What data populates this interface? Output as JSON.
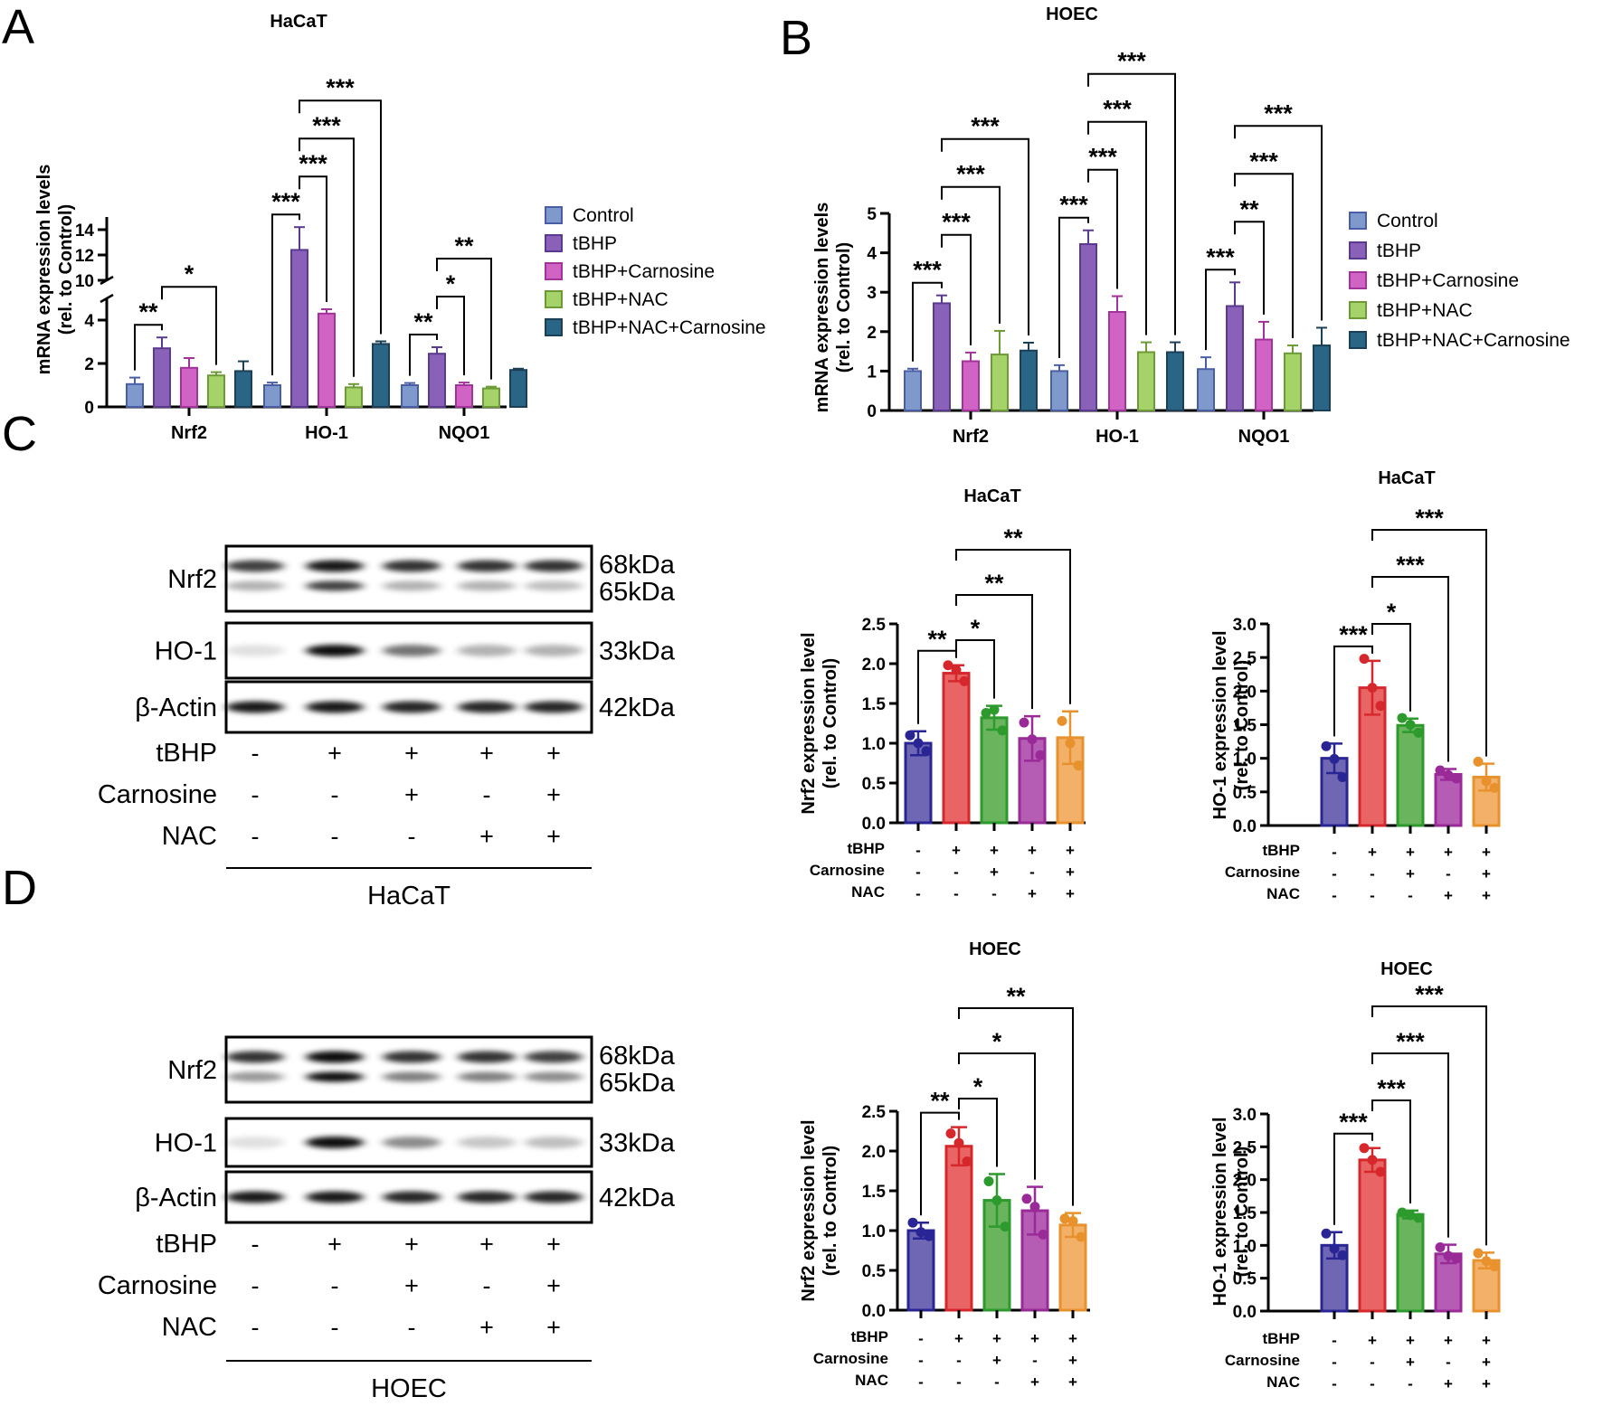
{
  "panels": {
    "A": "A",
    "B": "B",
    "C": "C",
    "D": "D"
  },
  "colors": {
    "qpcr": [
      "#7f99cc",
      "#8a61b8",
      "#d063c4",
      "#a6d26a",
      "#2a6586"
    ],
    "qpcr_stroke": [
      "#4a5ea5",
      "#5a3a8f",
      "#a2339a",
      "#6c9a35",
      "#1b3f57"
    ],
    "wb_fill": [
      "#6f66b4",
      "#e96464",
      "#69b45c",
      "#b55db4",
      "#f2b068"
    ],
    "wb_stroke": [
      "#2a2594",
      "#d6282c",
      "#2d9a2d",
      "#9b2a99",
      "#e8922d"
    ]
  },
  "legend": [
    "Control",
    "tBHP",
    "tBHP+Carnosine",
    "tBHP+NAC",
    "tBHP+NAC+Carnosine"
  ],
  "conditions": {
    "rows": [
      "tBHP",
      "Carnosine",
      "NAC"
    ],
    "signs": [
      [
        "-",
        "+",
        "+",
        "+",
        "+"
      ],
      [
        "-",
        "-",
        "+",
        "-",
        "+"
      ],
      [
        "-",
        "-",
        "-",
        "+",
        "+"
      ]
    ]
  },
  "chart_data": [
    {
      "id": "A",
      "type": "bar",
      "title": "HaCaT",
      "ylabel": "mRNA expression levels",
      "ylabel2": "(rel. to Control)",
      "categories": [
        "Nrf2",
        "HO-1",
        "NQO1"
      ],
      "y_broken": true,
      "ylim_lower": [
        0,
        5
      ],
      "ylim_upper": [
        10,
        15
      ],
      "yticks_lower": [
        "0",
        "2",
        "4"
      ],
      "yticks_upper": [
        "10",
        "12",
        "14"
      ],
      "series": [
        {
          "name": "Control",
          "values": [
            1.05,
            1.0,
            1.0
          ],
          "errors": [
            0.3,
            0.12,
            0.1
          ]
        },
        {
          "name": "tBHP",
          "values": [
            2.7,
            12.4,
            2.45
          ],
          "errors": [
            0.5,
            1.8,
            0.3
          ]
        },
        {
          "name": "tBHP+Carnosine",
          "values": [
            1.8,
            4.3,
            1.0
          ],
          "errors": [
            0.45,
            0.2,
            0.12
          ]
        },
        {
          "name": "tBHP+NAC",
          "values": [
            1.45,
            0.9,
            0.85
          ],
          "errors": [
            0.15,
            0.15,
            0.08
          ]
        },
        {
          "name": "tBHP+NAC+Carnosine",
          "values": [
            1.65,
            2.9,
            1.7
          ],
          "errors": [
            0.45,
            0.12,
            0.06
          ]
        }
      ],
      "annotations": [
        {
          "cat": 0,
          "from": 0,
          "to": 1,
          "label": "**"
        },
        {
          "cat": 0,
          "from": 1,
          "to": 3,
          "label": "*"
        },
        {
          "cat": 1,
          "from": 0,
          "to": 1,
          "label": "***"
        },
        {
          "cat": 1,
          "from": 1,
          "to": 2,
          "label": "***"
        },
        {
          "cat": 1,
          "from": 1,
          "to": 3,
          "label": "***"
        },
        {
          "cat": 1,
          "from": 1,
          "to": 4,
          "label": "***"
        },
        {
          "cat": 2,
          "from": 0,
          "to": 1,
          "label": "**"
        },
        {
          "cat": 2,
          "from": 1,
          "to": 2,
          "label": "*"
        },
        {
          "cat": 2,
          "from": 1,
          "to": 3,
          "label": "**"
        }
      ]
    },
    {
      "id": "B",
      "type": "bar",
      "title": "HOEC",
      "ylabel": "mRNA expression levels",
      "ylabel2": "(rel. to Control)",
      "categories": [
        "Nrf2",
        "HO-1",
        "NQO1"
      ],
      "ylim": [
        0,
        5
      ],
      "yticks": [
        "0",
        "1",
        "2",
        "3",
        "4",
        "5"
      ],
      "series": [
        {
          "name": "Control",
          "values": [
            1.0,
            1.0,
            1.05
          ],
          "errors": [
            0.06,
            0.15,
            0.3
          ]
        },
        {
          "name": "tBHP",
          "values": [
            2.72,
            4.22,
            2.65
          ],
          "errors": [
            0.2,
            0.35,
            0.6
          ]
        },
        {
          "name": "tBHP+Carnosine",
          "values": [
            1.25,
            2.5,
            1.8
          ],
          "errors": [
            0.22,
            0.4,
            0.45
          ]
        },
        {
          "name": "tBHP+NAC",
          "values": [
            1.42,
            1.48,
            1.45
          ],
          "errors": [
            0.6,
            0.25,
            0.2
          ]
        },
        {
          "name": "tBHP+NAC+Carnosine",
          "values": [
            1.52,
            1.48,
            1.65
          ],
          "errors": [
            0.2,
            0.25,
            0.45
          ]
        }
      ],
      "annotations": [
        {
          "cat": 0,
          "from": 0,
          "to": 1,
          "label": "***"
        },
        {
          "cat": 0,
          "from": 1,
          "to": 2,
          "label": "***"
        },
        {
          "cat": 0,
          "from": 1,
          "to": 3,
          "label": "***"
        },
        {
          "cat": 0,
          "from": 1,
          "to": 4,
          "label": "***"
        },
        {
          "cat": 1,
          "from": 0,
          "to": 1,
          "label": "***"
        },
        {
          "cat": 1,
          "from": 1,
          "to": 2,
          "label": "***"
        },
        {
          "cat": 1,
          "from": 1,
          "to": 3,
          "label": "***"
        },
        {
          "cat": 1,
          "from": 1,
          "to": 4,
          "label": "***"
        },
        {
          "cat": 2,
          "from": 0,
          "to": 1,
          "label": "***"
        },
        {
          "cat": 2,
          "from": 1,
          "to": 2,
          "label": "**"
        },
        {
          "cat": 2,
          "from": 1,
          "to": 3,
          "label": "***"
        },
        {
          "cat": 2,
          "from": 1,
          "to": 4,
          "label": "***"
        }
      ]
    },
    {
      "id": "C-Nrf2",
      "type": "bar",
      "title": "HaCaT",
      "ylabel": "Nrf2 expression level",
      "ylabel2": "(rel. to Control)",
      "ylim": [
        0,
        2.5
      ],
      "yticks": [
        "0.0",
        "0.5",
        "1.0",
        "1.5",
        "2.0",
        "2.5"
      ],
      "values": [
        1.0,
        1.88,
        1.32,
        1.06,
        1.07
      ],
      "errors": [
        0.15,
        0.1,
        0.15,
        0.28,
        0.33
      ],
      "points": [
        [
          1.1,
          1.0,
          0.9
        ],
        [
          1.98,
          1.92,
          1.78
        ],
        [
          1.38,
          1.42,
          1.16
        ],
        [
          1.26,
          1.05,
          0.85
        ],
        [
          1.28,
          1.0,
          0.72
        ]
      ],
      "annotations": [
        {
          "from": 0,
          "to": 1,
          "label": "**"
        },
        {
          "from": 1,
          "to": 2,
          "label": "*"
        },
        {
          "from": 1,
          "to": 3,
          "label": "**"
        },
        {
          "from": 1,
          "to": 4,
          "label": "**"
        }
      ]
    },
    {
      "id": "C-HO-1",
      "type": "bar",
      "title": "HaCaT",
      "ylabel": "HO-1 expression level",
      "ylabel2": "(rel. to Control)",
      "ylim": [
        0,
        3.0
      ],
      "yticks": [
        "0.0",
        "0.5",
        "1.0",
        "1.5",
        "2.0",
        "2.5",
        "3.0"
      ],
      "values": [
        1.0,
        2.05,
        1.49,
        0.76,
        0.72
      ],
      "errors": [
        0.22,
        0.4,
        0.1,
        0.08,
        0.2
      ],
      "points": [
        [
          1.18,
          0.99,
          0.72
        ],
        [
          2.48,
          2.05,
          1.78
        ],
        [
          1.6,
          1.5,
          1.38
        ],
        [
          0.82,
          0.75,
          0.7
        ],
        [
          0.95,
          0.66,
          0.56
        ]
      ],
      "annotations": [
        {
          "from": 0,
          "to": 1,
          "label": "***"
        },
        {
          "from": 1,
          "to": 2,
          "label": "*"
        },
        {
          "from": 1,
          "to": 3,
          "label": "***"
        },
        {
          "from": 1,
          "to": 4,
          "label": "***"
        }
      ]
    },
    {
      "id": "D-Nrf2",
      "type": "bar",
      "title": "HOEC",
      "ylabel": "Nrf2 expression level",
      "ylabel2": "(rel. to Control)",
      "ylim": [
        0,
        2.5
      ],
      "yticks": [
        "0.0",
        "0.5",
        "1.0",
        "1.5",
        "2.0",
        "2.5"
      ],
      "values": [
        1.0,
        2.06,
        1.38,
        1.25,
        1.07
      ],
      "errors": [
        0.1,
        0.24,
        0.33,
        0.3,
        0.15
      ],
      "points": [
        [
          1.1,
          0.98,
          0.93
        ],
        [
          2.22,
          2.1,
          1.87
        ],
        [
          1.62,
          1.38,
          1.05
        ],
        [
          1.4,
          1.3,
          0.95
        ],
        [
          1.15,
          1.12,
          0.92
        ]
      ],
      "annotations": [
        {
          "from": 0,
          "to": 1,
          "label": "**"
        },
        {
          "from": 1,
          "to": 2,
          "label": "*"
        },
        {
          "from": 1,
          "to": 3,
          "label": "*"
        },
        {
          "from": 1,
          "to": 4,
          "label": "**"
        }
      ]
    },
    {
      "id": "D-HO-1",
      "type": "bar",
      "title": "HOEC",
      "ylabel": "HO-1 expression level",
      "ylabel2": "(rel. to Control)",
      "ylim": [
        0,
        3.0
      ],
      "yticks": [
        "0.0",
        "0.5",
        "1.0",
        "1.5",
        "2.0",
        "2.5",
        "3.0"
      ],
      "values": [
        1.0,
        2.3,
        1.47,
        0.87,
        0.77
      ],
      "errors": [
        0.2,
        0.18,
        0.06,
        0.14,
        0.12
      ],
      "points": [
        [
          1.18,
          0.95,
          0.85
        ],
        [
          2.48,
          2.3,
          2.12
        ],
        [
          1.5,
          1.46,
          1.42
        ],
        [
          0.97,
          0.84,
          0.8
        ],
        [
          0.88,
          0.76,
          0.68
        ]
      ],
      "annotations": [
        {
          "from": 0,
          "to": 1,
          "label": "***"
        },
        {
          "from": 1,
          "to": 2,
          "label": "***"
        },
        {
          "from": 1,
          "to": 3,
          "label": "***"
        },
        {
          "from": 1,
          "to": 4,
          "label": "***"
        }
      ]
    }
  ],
  "western": [
    {
      "id": "C",
      "cell_line": "HaCaT",
      "rows": [
        {
          "label": "Nrf2",
          "kda": [
            "68kDa",
            "65kDa"
          ],
          "bands": [
            [
              0.75,
              0.3
            ],
            [
              0.9,
              0.75
            ],
            [
              0.8,
              0.3
            ],
            [
              0.8,
              0.3
            ],
            [
              0.8,
              0.25
            ]
          ]
        },
        {
          "label": "HO-1",
          "kda": [
            "33kDa"
          ],
          "bands": [
            [
              0.12
            ],
            [
              0.95
            ],
            [
              0.55
            ],
            [
              0.3
            ],
            [
              0.3
            ]
          ]
        },
        {
          "label": "β-Actin",
          "kda": [
            "42kDa"
          ],
          "bands": [
            [
              0.9
            ],
            [
              0.9
            ],
            [
              0.85
            ],
            [
              0.85
            ],
            [
              0.85
            ]
          ]
        }
      ]
    },
    {
      "id": "D",
      "cell_line": "HOEC",
      "rows": [
        {
          "label": "Nrf2",
          "kda": [
            "68kDa",
            "65kDa"
          ],
          "bands": [
            [
              0.8,
              0.4
            ],
            [
              0.95,
              0.95
            ],
            [
              0.8,
              0.5
            ],
            [
              0.8,
              0.5
            ],
            [
              0.75,
              0.45
            ]
          ]
        },
        {
          "label": "HO-1",
          "kda": [
            "33kDa"
          ],
          "bands": [
            [
              0.12
            ],
            [
              0.95
            ],
            [
              0.45
            ],
            [
              0.22
            ],
            [
              0.25
            ]
          ]
        },
        {
          "label": "β-Actin",
          "kda": [
            "42kDa"
          ],
          "bands": [
            [
              0.9
            ],
            [
              0.9
            ],
            [
              0.85
            ],
            [
              0.85
            ],
            [
              0.85
            ]
          ]
        }
      ]
    }
  ]
}
